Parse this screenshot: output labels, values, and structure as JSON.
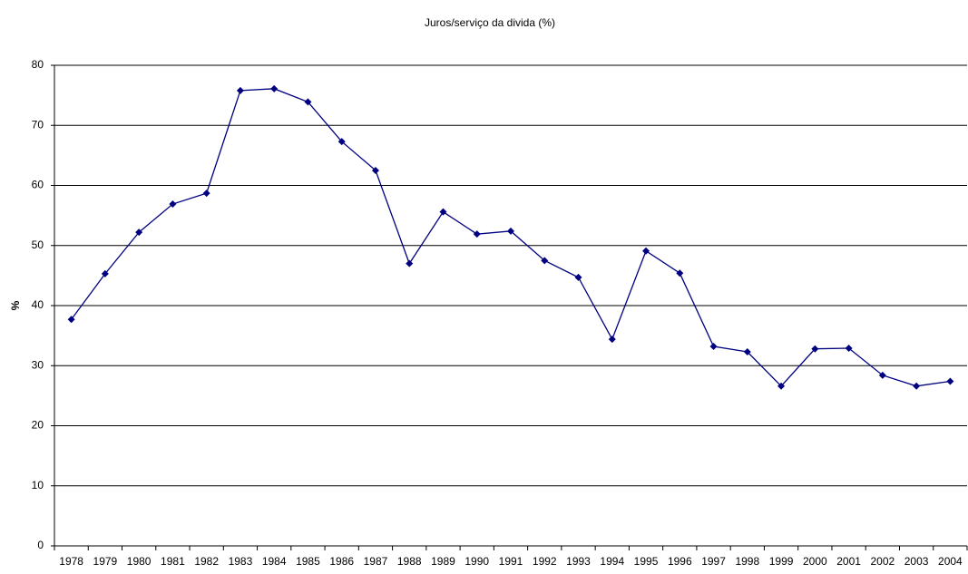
{
  "chart_data": {
    "type": "line",
    "title": "Juros/serviço da divida (%)",
    "y_label": "%",
    "categories": [
      "1978",
      "1979",
      "1980",
      "1981",
      "1982",
      "1983",
      "1984",
      "1985",
      "1986",
      "1987",
      "1988",
      "1989",
      "1990",
      "1991",
      "1992",
      "1993",
      "1994",
      "1995",
      "1996",
      "1997",
      "1998",
      "1999",
      "2000",
      "2001",
      "2002",
      "2003",
      "2004"
    ],
    "series": [
      {
        "name": "Juros/serviço da divida (%)",
        "color": "#000080",
        "values": [
          37.7,
          45.3,
          52.2,
          56.9,
          58.7,
          75.8,
          76.1,
          73.9,
          67.3,
          62.5,
          47,
          55.6,
          51.9,
          52.4,
          47.5,
          44.7,
          34.4,
          49.1,
          45.4,
          33.2,
          32.3,
          26.6,
          32.8,
          32.9,
          28.4,
          26.6,
          27.4
        ]
      }
    ],
    "ylim": [
      0,
      80
    ],
    "yticks": [
      0,
      10,
      20,
      30,
      40,
      50,
      60,
      70,
      80
    ],
    "grid": true
  }
}
